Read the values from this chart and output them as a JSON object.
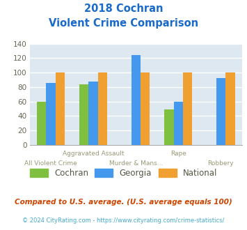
{
  "title_line1": "2018 Cochran",
  "title_line2": "Violent Crime Comparison",
  "categories": [
    "All Violent Crime",
    "Aggravated Assault",
    "Murder & Mans...",
    "Rape",
    "Robbery"
  ],
  "series": {
    "Cochran": [
      60,
      84,
      null,
      49,
      null
    ],
    "Georgia": [
      86,
      88,
      124,
      60,
      92
    ],
    "National": [
      100,
      100,
      100,
      100,
      100
    ]
  },
  "colors": {
    "Cochran": "#80c040",
    "Georgia": "#4499ee",
    "National": "#f0a030"
  },
  "ylim": [
    0,
    140
  ],
  "yticks": [
    0,
    20,
    40,
    60,
    80,
    100,
    120,
    140
  ],
  "top_row_labels": [
    "",
    "Aggravated Assault",
    "",
    "Rape",
    ""
  ],
  "bot_row_labels": [
    "All Violent Crime",
    "",
    "Murder & Mans...",
    "",
    "Robbery"
  ],
  "footnote1": "Compared to U.S. average. (U.S. average equals 100)",
  "footnote2": "© 2024 CityRating.com - https://www.cityrating.com/crime-statistics/",
  "title_color": "#1a6acc",
  "label_color": "#999977",
  "footnote1_color": "#cc4400",
  "footnote2_color": "#44aacc",
  "bg_color": "#dde8f0",
  "grid_color": "#ffffff"
}
